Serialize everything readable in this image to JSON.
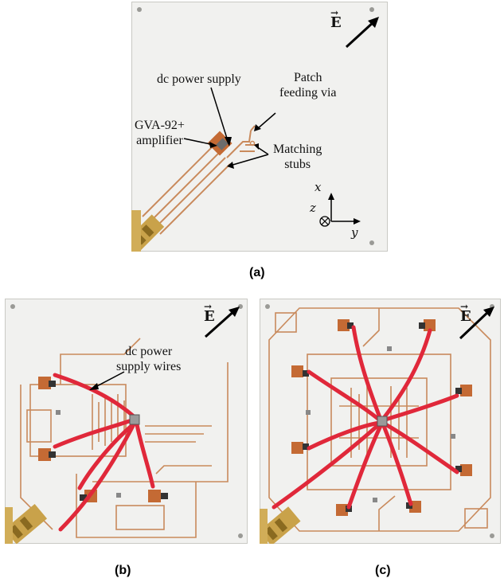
{
  "figure": {
    "panels": [
      {
        "caption": "(a)"
      },
      {
        "caption": "(b)"
      },
      {
        "caption": "(c)"
      }
    ],
    "panel_a": {
      "field_label": "E",
      "labels": {
        "dc_power_supply": "dc power supply",
        "patch_feeding_via_1": "Patch",
        "patch_feeding_via_2": "feeding via",
        "amplifier_1": "GVA-92+",
        "amplifier_2": "amplifier",
        "matching_stubs_1": "Matching",
        "matching_stubs_2": "stubs"
      },
      "axes": {
        "x": "x",
        "y": "y",
        "z": "z"
      }
    },
    "panel_b": {
      "field_label": "E",
      "labels": {
        "wires_1": "dc power",
        "wires_2": "supply wires"
      },
      "wire_count": 4
    },
    "panel_c": {
      "field_label": "E",
      "wire_count": 8
    },
    "colors": {
      "board": "#f1f1ef",
      "copper_trace": "#c98a5c",
      "copper_pad": "#c46a34",
      "wire": "#e0283a",
      "connector": "#b8902e"
    }
  }
}
